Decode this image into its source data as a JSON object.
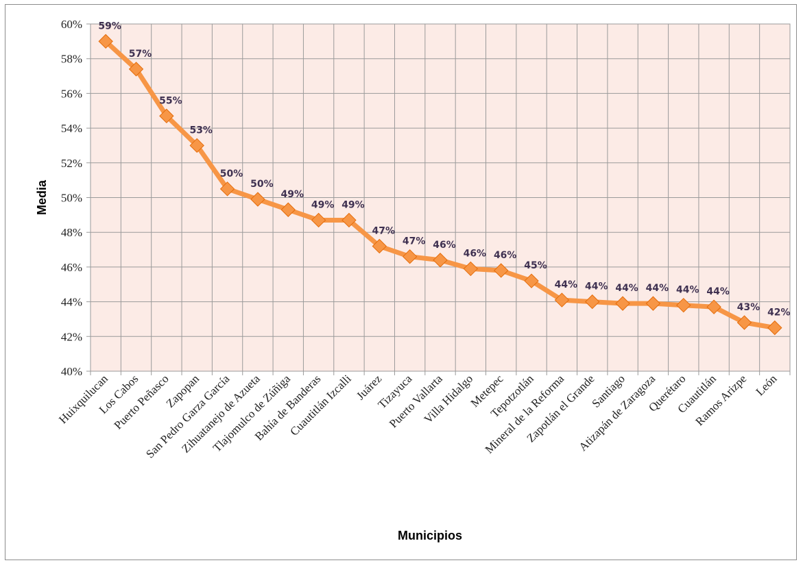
{
  "chart_data": {
    "type": "line",
    "xlabel": "Municipios",
    "ylabel": "Media",
    "ylim": [
      40,
      60
    ],
    "ytick_step": 2,
    "ytick_format": "percent",
    "grid": true,
    "legend": "none",
    "colors": {
      "plot_background": "#fcebe6",
      "grid": "#9a9a9a",
      "series": "#f79646",
      "data_label": "#3f3151"
    },
    "categories": [
      "Huixquilucan",
      "Los Cabos",
      "Puerto Peñasco",
      "Zapopan",
      "San Pedro Garza García",
      "Zihuatanejo de Azueta",
      "Tlajomulco de Zúñiga",
      "Bahía de Banderas",
      "Cuautitlán Izcalli",
      "Juárez",
      "Tizayuca",
      "Puerto Vallarta",
      "Villa Hidalgo",
      "Metepec",
      "Tepotzotlán",
      "Mineral de la Reforma",
      "Zapotlán el Grande",
      "Santiago",
      "Atizapán de Zaragoza",
      "Querétaro",
      "Cuautitlán",
      "Ramos Arizpe",
      "León"
    ],
    "series": [
      {
        "values": [
          59.0,
          57.4,
          54.7,
          53.0,
          50.5,
          49.9,
          49.3,
          48.7,
          48.7,
          47.2,
          46.6,
          46.4,
          45.9,
          45.8,
          45.2,
          44.1,
          44.0,
          43.9,
          43.9,
          43.8,
          43.7,
          42.8,
          42.5
        ],
        "labels": [
          "59%",
          "57%",
          "55%",
          "53%",
          "50%",
          "50%",
          "49%",
          "49%",
          "49%",
          "47%",
          "47%",
          "46%",
          "46%",
          "46%",
          "45%",
          "44%",
          "44%",
          "44%",
          "44%",
          "44%",
          "44%",
          "43%",
          "42%"
        ]
      }
    ]
  }
}
